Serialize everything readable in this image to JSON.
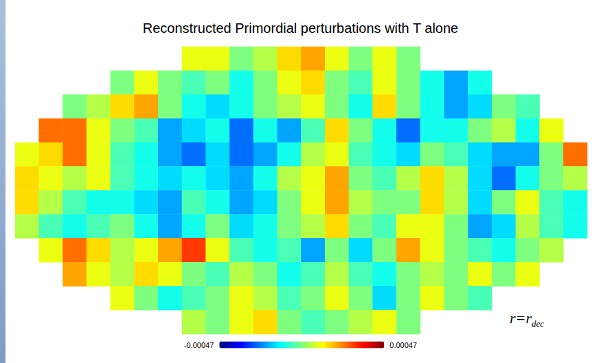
{
  "chart_data": {
    "type": "heatmap",
    "title": "Reconstructed Primordial perturbations with T alone",
    "annotation": {
      "text": "r=r",
      "subscript": "dec"
    },
    "tick_labels": false,
    "colorbar": {
      "range": [
        -0.00047,
        0.00047
      ],
      "ticks": [
        -0.00047,
        0.00047
      ]
    },
    "cells": [
      [
        null,
        null,
        null,
        null,
        null,
        null,
        null,
        0.0001,
        0.0001,
        0,
        5e-05,
        0.00015,
        0.0002,
        0.0001,
        0,
        0.0001,
        0,
        null,
        null,
        null,
        null,
        null,
        null,
        null
      ],
      [
        null,
        null,
        null,
        null,
        0,
        0.0001,
        0,
        -5e-05,
        0,
        -0.0001,
        0,
        0.0001,
        0.00015,
        0,
        -5e-05,
        0.0001,
        0,
        -0.0001,
        -0.0002,
        -0.0001,
        null,
        null,
        null,
        null
      ],
      [
        null,
        null,
        0,
        5e-05,
        0.00015,
        0.0002,
        0,
        -0.0001,
        -0.00015,
        -0.0001,
        0,
        5e-05,
        0.0001,
        0,
        -0.0001,
        0.00015,
        0,
        -0.0001,
        -0.0002,
        -0.00015,
        0,
        -5e-05,
        null,
        null
      ],
      [
        null,
        0.00025,
        0.00025,
        0.0001,
        0,
        -5e-05,
        -0.0002,
        -0.00015,
        -0.0001,
        -0.00025,
        -0.0001,
        -0.0002,
        -5e-05,
        0.00015,
        0,
        -0.0001,
        -0.00025,
        -0.0001,
        -0.0001,
        0,
        5e-05,
        -0.0001,
        0.0001,
        null
      ],
      [
        0.0001,
        0.00015,
        0.00025,
        0.0001,
        -5e-05,
        -0.0001,
        -0.0002,
        -0.00025,
        -0.00015,
        -0.00025,
        -0.0002,
        -0.0001,
        5e-05,
        0.0001,
        -5e-05,
        -0.0001,
        -0.00015,
        0,
        -5e-05,
        -0.00015,
        -0.0002,
        -0.0002,
        0,
        0.00025
      ],
      [
        0.00015,
        0.0001,
        5e-05,
        0.0001,
        -5e-05,
        -0.0001,
        -0.00015,
        -0.0001,
        -0.00015,
        -0.0002,
        -0.0001,
        5e-05,
        0.0001,
        0.0002,
        0,
        -5e-05,
        5e-05,
        0.00015,
        5e-05,
        -0.00015,
        -0.00025,
        -0.0001,
        0,
        5e-05
      ],
      [
        0.00015,
        5e-05,
        -5e-05,
        -0.0001,
        -0.0001,
        -0.00015,
        -0.0002,
        -5e-05,
        -0.0001,
        -0.0002,
        -0.00015,
        0,
        0.0001,
        0.0002,
        5e-05,
        0,
        0,
        0.00015,
        5e-05,
        -0.00015,
        0,
        0.0001,
        -5e-05,
        -0.0001
      ],
      [
        5e-05,
        -5e-05,
        -0.0001,
        -5e-05,
        0,
        -0.0001,
        -0.0002,
        -0.0001,
        0,
        -0.00015,
        -0.0001,
        0,
        5e-05,
        0.00015,
        0,
        -5e-05,
        0.0001,
        0.0001,
        0,
        -0.0002,
        -0.00015,
        5e-05,
        -5e-05,
        -0.0001
      ],
      [
        null,
        0.0001,
        0.00025,
        0.00015,
        5e-05,
        0.0001,
        0.0002,
        0.0003,
        0.0001,
        -5e-05,
        -0.0001,
        -5e-05,
        -0.0002,
        0,
        -0.00015,
        0,
        0.0002,
        0.0001,
        0,
        -5e-05,
        -0.0001,
        0,
        5e-05,
        null
      ],
      [
        null,
        null,
        0.0002,
        0.0001,
        5e-05,
        0.00015,
        0.0001,
        0,
        -5e-05,
        5e-05,
        0,
        -0.0001,
        -5e-05,
        5e-05,
        -5e-05,
        -0.0001,
        0,
        5e-05,
        0,
        0.0001,
        0,
        0.0001,
        null,
        null
      ],
      [
        null,
        null,
        null,
        null,
        0.0001,
        0,
        -0.0001,
        -5e-05,
        0,
        0.0001,
        5e-05,
        -5e-05,
        0,
        0.0001,
        0,
        -0.00015,
        0,
        0.0001,
        0,
        -5e-05,
        null,
        null,
        null,
        null
      ],
      [
        null,
        null,
        null,
        null,
        null,
        null,
        null,
        5e-05,
        0,
        0.0001,
        0.00015,
        0,
        -5e-05,
        0,
        5e-05,
        0.0001,
        0,
        null,
        null,
        null,
        null,
        null,
        null,
        null
      ]
    ]
  }
}
